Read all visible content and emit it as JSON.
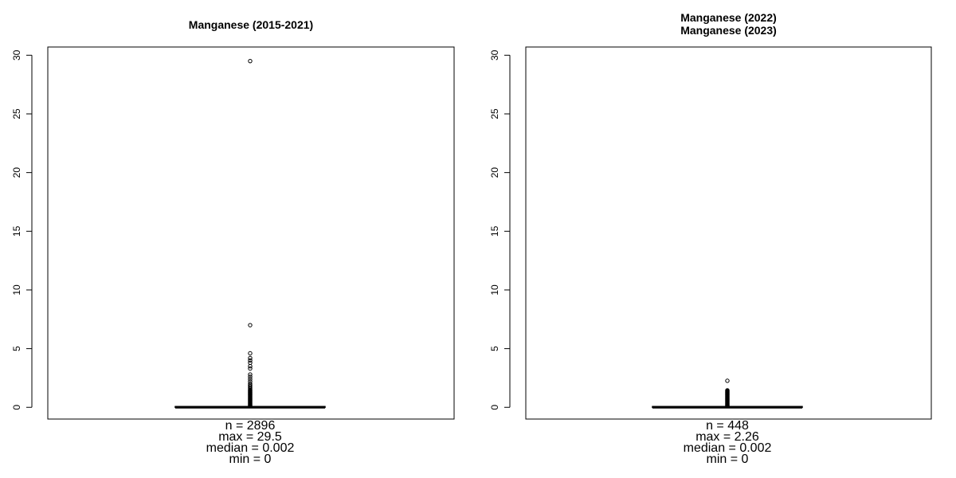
{
  "chart_data": [
    {
      "type": "boxplot",
      "title_lines": [
        "Manganese (2015-2021)"
      ],
      "ylim": [
        -1,
        30.7
      ],
      "yticks": [
        0,
        5,
        10,
        15,
        20,
        25,
        30
      ],
      "box": {
        "min": 0,
        "q1": 0,
        "median": 0.002,
        "q3": 0.03,
        "whisker_high": 0.07
      },
      "outliers": [
        0.1,
        0.15,
        0.2,
        0.25,
        0.3,
        0.35,
        0.4,
        0.45,
        0.5,
        0.55,
        0.6,
        0.65,
        0.7,
        0.75,
        0.8,
        0.85,
        0.9,
        0.95,
        1.0,
        1.05,
        1.1,
        1.15,
        1.2,
        1.25,
        1.3,
        1.35,
        1.4,
        1.45,
        1.5,
        1.6,
        1.7,
        1.8,
        1.9,
        2.0,
        2.2,
        2.4,
        2.6,
        2.8,
        3.3,
        3.5,
        3.8,
        4.0,
        4.2,
        4.6,
        7.0,
        29.5
      ],
      "stats": [
        "n = 2896",
        "max = 29.5",
        "median = 0.002",
        "min = 0"
      ]
    },
    {
      "type": "boxplot",
      "title_lines": [
        "Manganese (2022)",
        "Manganese (2023)"
      ],
      "ylim": [
        -1,
        30.7
      ],
      "yticks": [
        0,
        5,
        10,
        15,
        20,
        25,
        30
      ],
      "box": {
        "min": 0,
        "q1": 0,
        "median": 0.002,
        "q3": 0.03,
        "whisker_high": 0.07
      },
      "outliers": [
        0.1,
        0.15,
        0.2,
        0.25,
        0.3,
        0.35,
        0.4,
        0.45,
        0.5,
        0.55,
        0.6,
        0.65,
        0.7,
        0.75,
        0.8,
        0.85,
        0.9,
        0.95,
        1.0,
        1.05,
        1.1,
        1.15,
        1.2,
        1.25,
        1.3,
        1.35,
        1.4,
        1.45,
        2.26
      ],
      "stats": [
        "n = 448",
        "max = 2.26",
        "median = 0.002",
        "min = 0"
      ]
    }
  ]
}
